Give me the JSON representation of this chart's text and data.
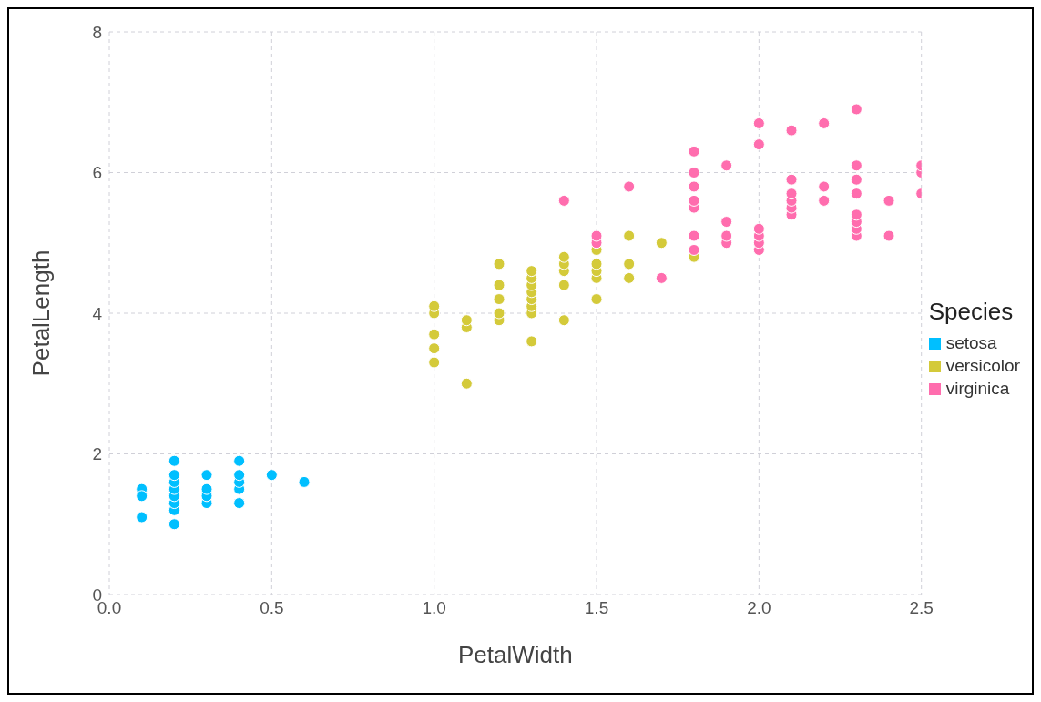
{
  "chart_data": {
    "type": "scatter",
    "xlabel": "PetalWidth",
    "ylabel": "PetalLength",
    "legend_title": "Species",
    "legend": "right",
    "grid": true,
    "marker": "circle",
    "xlim": [
      0,
      2.5
    ],
    "xticks": [
      {
        "value": 0,
        "label": "0.0"
      },
      0.5,
      {
        "value": 1,
        "label": "1.0"
      },
      1.5,
      {
        "value": 2,
        "label": "2.0"
      },
      2.5
    ],
    "ylim": [
      0,
      8
    ],
    "yticks": [
      0,
      2,
      4,
      6,
      8
    ],
    "series": [
      {
        "name": "setosa",
        "color": "#00bfff",
        "x": [
          0.1,
          0.1,
          0.1,
          0.2,
          0.2,
          0.2,
          0.2,
          0.2,
          0.2,
          0.2,
          0.2,
          0.3,
          0.3,
          0.3,
          0.3,
          0.4,
          0.4,
          0.4,
          0.4,
          0.4,
          0.5,
          0.6
        ],
        "values": [
          1.5,
          1.4,
          1.1,
          1.0,
          1.2,
          1.3,
          1.4,
          1.5,
          1.6,
          1.7,
          1.9,
          1.3,
          1.4,
          1.5,
          1.7,
          1.3,
          1.5,
          1.6,
          1.7,
          1.9,
          1.7,
          1.6
        ]
      },
      {
        "name": "versicolor",
        "color": "#d4ca3a",
        "x": [
          1.0,
          1.0,
          1.0,
          1.0,
          1.0,
          1.1,
          1.1,
          1.1,
          1.2,
          1.2,
          1.2,
          1.2,
          1.2,
          1.3,
          1.3,
          1.3,
          1.3,
          1.3,
          1.3,
          1.3,
          1.3,
          1.4,
          1.4,
          1.4,
          1.4,
          1.4,
          1.5,
          1.5,
          1.5,
          1.5,
          1.5,
          1.6,
          1.6,
          1.6,
          1.7,
          1.8
        ],
        "values": [
          3.3,
          3.5,
          3.7,
          4.0,
          4.1,
          3.0,
          3.8,
          3.9,
          3.9,
          4.0,
          4.2,
          4.4,
          4.7,
          3.6,
          4.0,
          4.1,
          4.2,
          4.3,
          4.4,
          4.5,
          4.6,
          3.9,
          4.4,
          4.6,
          4.7,
          4.8,
          4.2,
          4.5,
          4.6,
          4.7,
          4.9,
          4.5,
          4.7,
          5.1,
          5.0,
          4.8
        ]
      },
      {
        "name": "virginica",
        "color": "#ff6dae",
        "x": [
          1.4,
          1.5,
          1.5,
          1.6,
          1.7,
          1.8,
          1.8,
          1.8,
          1.8,
          1.8,
          1.8,
          1.8,
          1.9,
          1.9,
          1.9,
          1.9,
          2.0,
          2.0,
          2.0,
          2.0,
          2.0,
          2.0,
          2.1,
          2.1,
          2.1,
          2.1,
          2.1,
          2.1,
          2.2,
          2.2,
          2.2,
          2.3,
          2.3,
          2.3,
          2.3,
          2.3,
          2.3,
          2.3,
          2.3,
          2.4,
          2.4,
          2.5,
          2.5,
          2.5
        ],
        "values": [
          5.6,
          5.0,
          5.1,
          5.8,
          4.5,
          4.9,
          5.1,
          5.5,
          5.6,
          5.8,
          6.0,
          6.3,
          5.0,
          5.1,
          5.3,
          6.1,
          4.9,
          5.0,
          5.1,
          5.2,
          6.4,
          6.7,
          5.4,
          5.5,
          5.6,
          5.7,
          5.9,
          6.6,
          5.6,
          5.8,
          6.7,
          5.1,
          5.2,
          5.3,
          5.4,
          5.7,
          5.9,
          6.1,
          6.9,
          5.1,
          5.6,
          5.7,
          6.0,
          6.1
        ]
      }
    ]
  }
}
